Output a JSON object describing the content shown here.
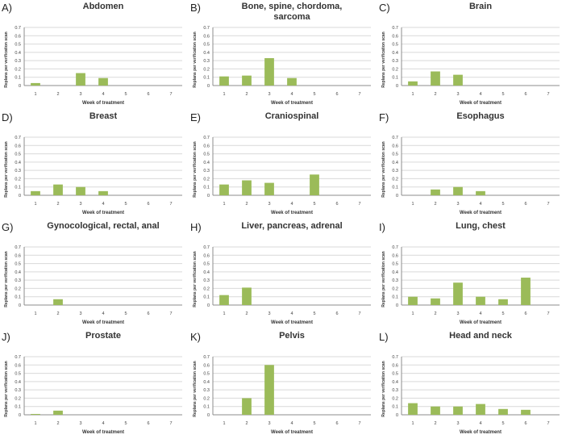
{
  "chart_data": [
    {
      "type": "bar",
      "letter": "A)",
      "title": "Abdomen",
      "categories": [
        "1",
        "2",
        "3",
        "4",
        "5",
        "6",
        "7"
      ],
      "values": [
        0.03,
        0,
        0.15,
        0.09,
        0,
        0,
        0
      ],
      "xlabel": "Week of treatment",
      "ylabel": "Replans per verification scan",
      "ylim": [
        0,
        0.7
      ],
      "yticks": [
        "0",
        "0.1",
        "0.2",
        "0.3",
        "0.4",
        "0.5",
        "0.6",
        "0.7"
      ],
      "bar_color": "#9bbb59"
    },
    {
      "type": "bar",
      "letter": "B)",
      "title": "Bone, spine, chordoma, sarcoma",
      "categories": [
        "1",
        "2",
        "3",
        "4",
        "5",
        "6",
        "7"
      ],
      "values": [
        0.11,
        0.12,
        0.33,
        0.09,
        0,
        0,
        0
      ],
      "xlabel": "Week of treatment",
      "ylabel": "Replans per verification scan",
      "ylim": [
        0,
        0.7
      ],
      "yticks": [
        "0",
        "0.1",
        "0.2",
        "0.3",
        "0.4",
        "0.5",
        "0.6",
        "0.7"
      ],
      "bar_color": "#9bbb59"
    },
    {
      "type": "bar",
      "letter": "C)",
      "title": "Brain",
      "categories": [
        "1",
        "2",
        "3",
        "4",
        "5",
        "6",
        "7"
      ],
      "values": [
        0.05,
        0.17,
        0.13,
        0,
        0,
        0,
        0
      ],
      "xlabel": "Week of treatment",
      "ylabel": "Replans per verification scan",
      "ylim": [
        0,
        0.7
      ],
      "yticks": [
        "0",
        "0.1",
        "0.2",
        "0.3",
        "0.4",
        "0.5",
        "0.6",
        "0.7"
      ],
      "bar_color": "#9bbb59"
    },
    {
      "type": "bar",
      "letter": "D)",
      "title": "Breast",
      "categories": [
        "1",
        "2",
        "3",
        "4",
        "5",
        "6",
        "7"
      ],
      "values": [
        0.05,
        0.13,
        0.1,
        0.05,
        0,
        0,
        0
      ],
      "xlabel": "Week of treatment",
      "ylabel": "Replans per verification scan",
      "ylim": [
        0,
        0.7
      ],
      "yticks": [
        "0",
        "0.1",
        "0.2",
        "0.3",
        "0.4",
        "0.5",
        "0.6",
        "0.7"
      ],
      "bar_color": "#9bbb59"
    },
    {
      "type": "bar",
      "letter": "E)",
      "title": "Craniospinal",
      "categories": [
        "1",
        "2",
        "3",
        "4",
        "5",
        "6",
        "7"
      ],
      "values": [
        0.13,
        0.18,
        0.15,
        0,
        0.25,
        0,
        0
      ],
      "xlabel": "Week of treatment",
      "ylabel": "Replans per verification scan",
      "ylim": [
        0,
        0.7
      ],
      "yticks": [
        "0",
        "0.1",
        "0.2",
        "0.3",
        "0.4",
        "0.5",
        "0.6",
        "0.7"
      ],
      "bar_color": "#9bbb59"
    },
    {
      "type": "bar",
      "letter": "F)",
      "title": "Esophagus",
      "categories": [
        "1",
        "2",
        "3",
        "4",
        "5",
        "6",
        "7"
      ],
      "values": [
        0,
        0.07,
        0.1,
        0.05,
        0,
        0,
        0
      ],
      "xlabel": "Week of treatment",
      "ylabel": "Replans per verification scan",
      "ylim": [
        0,
        0.7
      ],
      "yticks": [
        "0",
        "0.1",
        "0.2",
        "0.3",
        "0.4",
        "0.5",
        "0.6",
        "0.7"
      ],
      "bar_color": "#9bbb59"
    },
    {
      "type": "bar",
      "letter": "G)",
      "title": "Gynocological, rectal, anal",
      "categories": [
        "1",
        "2",
        "3",
        "4",
        "5",
        "6",
        "7"
      ],
      "values": [
        0,
        0.07,
        0,
        0,
        0,
        0,
        0
      ],
      "xlabel": "Week of treatment",
      "ylabel": "Replans per verification scan",
      "ylim": [
        0,
        0.7
      ],
      "yticks": [
        "0",
        "0.1",
        "0.2",
        "0.3",
        "0.4",
        "0.5",
        "0.6",
        "0.7"
      ],
      "bar_color": "#9bbb59"
    },
    {
      "type": "bar",
      "letter": "H)",
      "title": "Liver, pancreas, adrenal",
      "categories": [
        "1",
        "2",
        "3",
        "4",
        "5",
        "6",
        "7"
      ],
      "values": [
        0.12,
        0.21,
        0,
        0,
        0,
        0,
        0
      ],
      "xlabel": "Week of treatment",
      "ylabel": "Replans per verification scan",
      "ylim": [
        0,
        0.7
      ],
      "yticks": [
        "0",
        "0.1",
        "0.2",
        "0.3",
        "0.4",
        "0.5",
        "0.6",
        "0.7"
      ],
      "bar_color": "#9bbb59"
    },
    {
      "type": "bar",
      "letter": "I)",
      "title": "Lung, chest",
      "categories": [
        "1",
        "2",
        "3",
        "4",
        "5",
        "6",
        "7"
      ],
      "values": [
        0.1,
        0.08,
        0.27,
        0.1,
        0.07,
        0.33,
        0
      ],
      "xlabel": "Week of treatment",
      "ylabel": "Replans per verification scan",
      "ylim": [
        0,
        0.7
      ],
      "yticks": [
        "0",
        "0.1",
        "0.2",
        "0.3",
        "0.4",
        "0.5",
        "0.6",
        "0.7"
      ],
      "bar_color": "#9bbb59"
    },
    {
      "type": "bar",
      "letter": "J)",
      "title": "Prostate",
      "categories": [
        "1",
        "2",
        "3",
        "4",
        "5",
        "6",
        "7"
      ],
      "values": [
        0.01,
        0.05,
        0,
        0,
        0,
        0,
        0
      ],
      "xlabel": "Week of treatment",
      "ylabel": "Replans per verification scan",
      "ylim": [
        0,
        0.7
      ],
      "yticks": [
        "0",
        "0.1",
        "0.2",
        "0.3",
        "0.4",
        "0.5",
        "0.6",
        "0.7"
      ],
      "bar_color": "#9bbb59"
    },
    {
      "type": "bar",
      "letter": "K)",
      "title": "Pelvis",
      "categories": [
        "1",
        "2",
        "3",
        "4",
        "5",
        "6",
        "7"
      ],
      "values": [
        0,
        0.2,
        0.6,
        0,
        0,
        0,
        0
      ],
      "xlabel": "Week of treatment",
      "ylabel": "Replans per verification scan",
      "ylim": [
        0,
        0.7
      ],
      "yticks": [
        "0",
        "0.1",
        "0.2",
        "0.3",
        "0.4",
        "0.5",
        "0.6",
        "0.7"
      ],
      "bar_color": "#9bbb59"
    },
    {
      "type": "bar",
      "letter": "L)",
      "title": "Head and neck",
      "categories": [
        "1",
        "2",
        "3",
        "4",
        "5",
        "6",
        "7"
      ],
      "values": [
        0.14,
        0.1,
        0.1,
        0.13,
        0.07,
        0.06,
        0
      ],
      "xlabel": "Week of treatment",
      "ylabel": "Replans per verification scan",
      "ylim": [
        0,
        0.7
      ],
      "yticks": [
        "0",
        "0.1",
        "0.2",
        "0.3",
        "0.4",
        "0.5",
        "0.6",
        "0.7"
      ],
      "bar_color": "#9bbb59"
    }
  ]
}
